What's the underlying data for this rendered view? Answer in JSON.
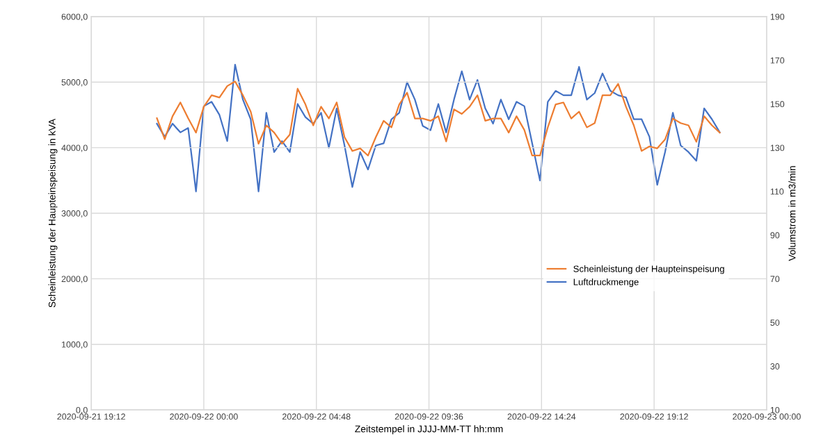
{
  "chart_data": {
    "type": "line",
    "xlabel": "Zeitstempel in JJJJ-MM-TT hh:mm",
    "ylabel": "Scheinleistung der Haupteinspeisung in kVA",
    "y2label": "Volumstrom in m3/min",
    "x": [
      "2020-09-21T22:00",
      "2020-09-21T22:20",
      "2020-09-21T22:40",
      "2020-09-21T23:00",
      "2020-09-21T23:20",
      "2020-09-21T23:40",
      "2020-09-22T00:00",
      "2020-09-22T00:20",
      "2020-09-22T00:40",
      "2020-09-22T01:00",
      "2020-09-22T01:20",
      "2020-09-22T01:40",
      "2020-09-22T02:00",
      "2020-09-22T02:20",
      "2020-09-22T02:40",
      "2020-09-22T03:00",
      "2020-09-22T03:20",
      "2020-09-22T03:40",
      "2020-09-22T04:00",
      "2020-09-22T04:20",
      "2020-09-22T04:40",
      "2020-09-22T05:00",
      "2020-09-22T05:20",
      "2020-09-22T05:40",
      "2020-09-22T06:00",
      "2020-09-22T06:20",
      "2020-09-22T06:40",
      "2020-09-22T07:00",
      "2020-09-22T07:20",
      "2020-09-22T07:40",
      "2020-09-22T08:00",
      "2020-09-22T08:20",
      "2020-09-22T08:40",
      "2020-09-22T09:00",
      "2020-09-22T09:20",
      "2020-09-22T09:40",
      "2020-09-22T10:00",
      "2020-09-22T10:20",
      "2020-09-22T10:40",
      "2020-09-22T11:00",
      "2020-09-22T11:20",
      "2020-09-22T11:40",
      "2020-09-22T12:00",
      "2020-09-22T12:20",
      "2020-09-22T12:40",
      "2020-09-22T13:00",
      "2020-09-22T13:20",
      "2020-09-22T13:40",
      "2020-09-22T14:00",
      "2020-09-22T14:20",
      "2020-09-22T14:40",
      "2020-09-22T15:00",
      "2020-09-22T15:20",
      "2020-09-22T15:40",
      "2020-09-22T16:00",
      "2020-09-22T16:20",
      "2020-09-22T16:40",
      "2020-09-22T17:00",
      "2020-09-22T17:20",
      "2020-09-22T17:40",
      "2020-09-22T18:00",
      "2020-09-22T18:20",
      "2020-09-22T18:40",
      "2020-09-22T19:00",
      "2020-09-22T19:20",
      "2020-09-22T19:40",
      "2020-09-22T20:00",
      "2020-09-22T20:20",
      "2020-09-22T20:40",
      "2020-09-22T21:00",
      "2020-09-22T21:20",
      "2020-09-22T21:40",
      "2020-09-22T22:00"
    ],
    "series": [
      {
        "name": "Scheinleistung der Haupteinspeisung",
        "color": "#ed7d31",
        "values": [
          4450,
          4130,
          4480,
          4690,
          4450,
          4230,
          4625,
          4800,
          4765,
          4940,
          5010,
          4800,
          4550,
          4060,
          4340,
          4230,
          4060,
          4200,
          4900,
          4660,
          4340,
          4625,
          4445,
          4690,
          4160,
          3950,
          3990,
          3880,
          4160,
          4410,
          4310,
          4660,
          4840,
          4445,
          4445,
          4410,
          4480,
          4095,
          4585,
          4515,
          4625,
          4800,
          4410,
          4445,
          4445,
          4230,
          4480,
          4270,
          3880,
          3880,
          4310,
          4660,
          4690,
          4445,
          4550,
          4310,
          4375,
          4800,
          4800,
          4975,
          4625,
          4340,
          3950,
          4020,
          3990,
          4125,
          4445,
          4375,
          4340,
          4090,
          4480,
          4340,
          4230
        ]
      },
      {
        "name": "Luftdruckmenge",
        "color": "#4472c4",
        "axis": "y2",
        "values": [
          141,
          135,
          141,
          137,
          139,
          110,
          149,
          151,
          145,
          133,
          168,
          152,
          143,
          110,
          146,
          128,
          133,
          128,
          150,
          144,
          141,
          146,
          130,
          148,
          131,
          112,
          128,
          120,
          131,
          132,
          143,
          146,
          160,
          152,
          140,
          138,
          150,
          137,
          152,
          165,
          152,
          161,
          148,
          141,
          152,
          143,
          151,
          149,
          132,
          115,
          151,
          156,
          154,
          154,
          167,
          152,
          155,
          164,
          156,
          154,
          153,
          143,
          143,
          135,
          113,
          128,
          146,
          131,
          128,
          124,
          148,
          143,
          137
        ]
      }
    ],
    "xlim": [
      "2020-09-21T19:12",
      "2020-09-23T00:00"
    ],
    "xticks": [
      {
        "value": "2020-09-21T19:12",
        "label": "2020-09-21 19:12"
      },
      {
        "value": "2020-09-22T00:00",
        "label": "2020-09-22 00:00"
      },
      {
        "value": "2020-09-22T04:48",
        "label": "2020-09-22 04:48"
      },
      {
        "value": "2020-09-22T09:36",
        "label": "2020-09-22 09:36"
      },
      {
        "value": "2020-09-22T14:24",
        "label": "2020-09-22 14:24"
      },
      {
        "value": "2020-09-22T19:12",
        "label": "2020-09-22 19:12"
      },
      {
        "value": "2020-09-23T00:00",
        "label": "2020-09-23 00:00"
      }
    ],
    "ylim": [
      0,
      6000
    ],
    "yticks": [
      {
        "value": 0,
        "label": "0,0"
      },
      {
        "value": 1000,
        "label": "1000,0"
      },
      {
        "value": 2000,
        "label": "2000,0"
      },
      {
        "value": 3000,
        "label": "3000,0"
      },
      {
        "value": 4000,
        "label": "4000,0"
      },
      {
        "value": 5000,
        "label": "5000,0"
      },
      {
        "value": 6000,
        "label": "6000,0"
      }
    ],
    "y2lim": [
      10,
      190
    ],
    "y2ticks": [
      10,
      30,
      50,
      70,
      90,
      110,
      130,
      150,
      170,
      190
    ],
    "grid": true,
    "legend": "center right",
    "marker": "none",
    "line_style": "solid"
  }
}
